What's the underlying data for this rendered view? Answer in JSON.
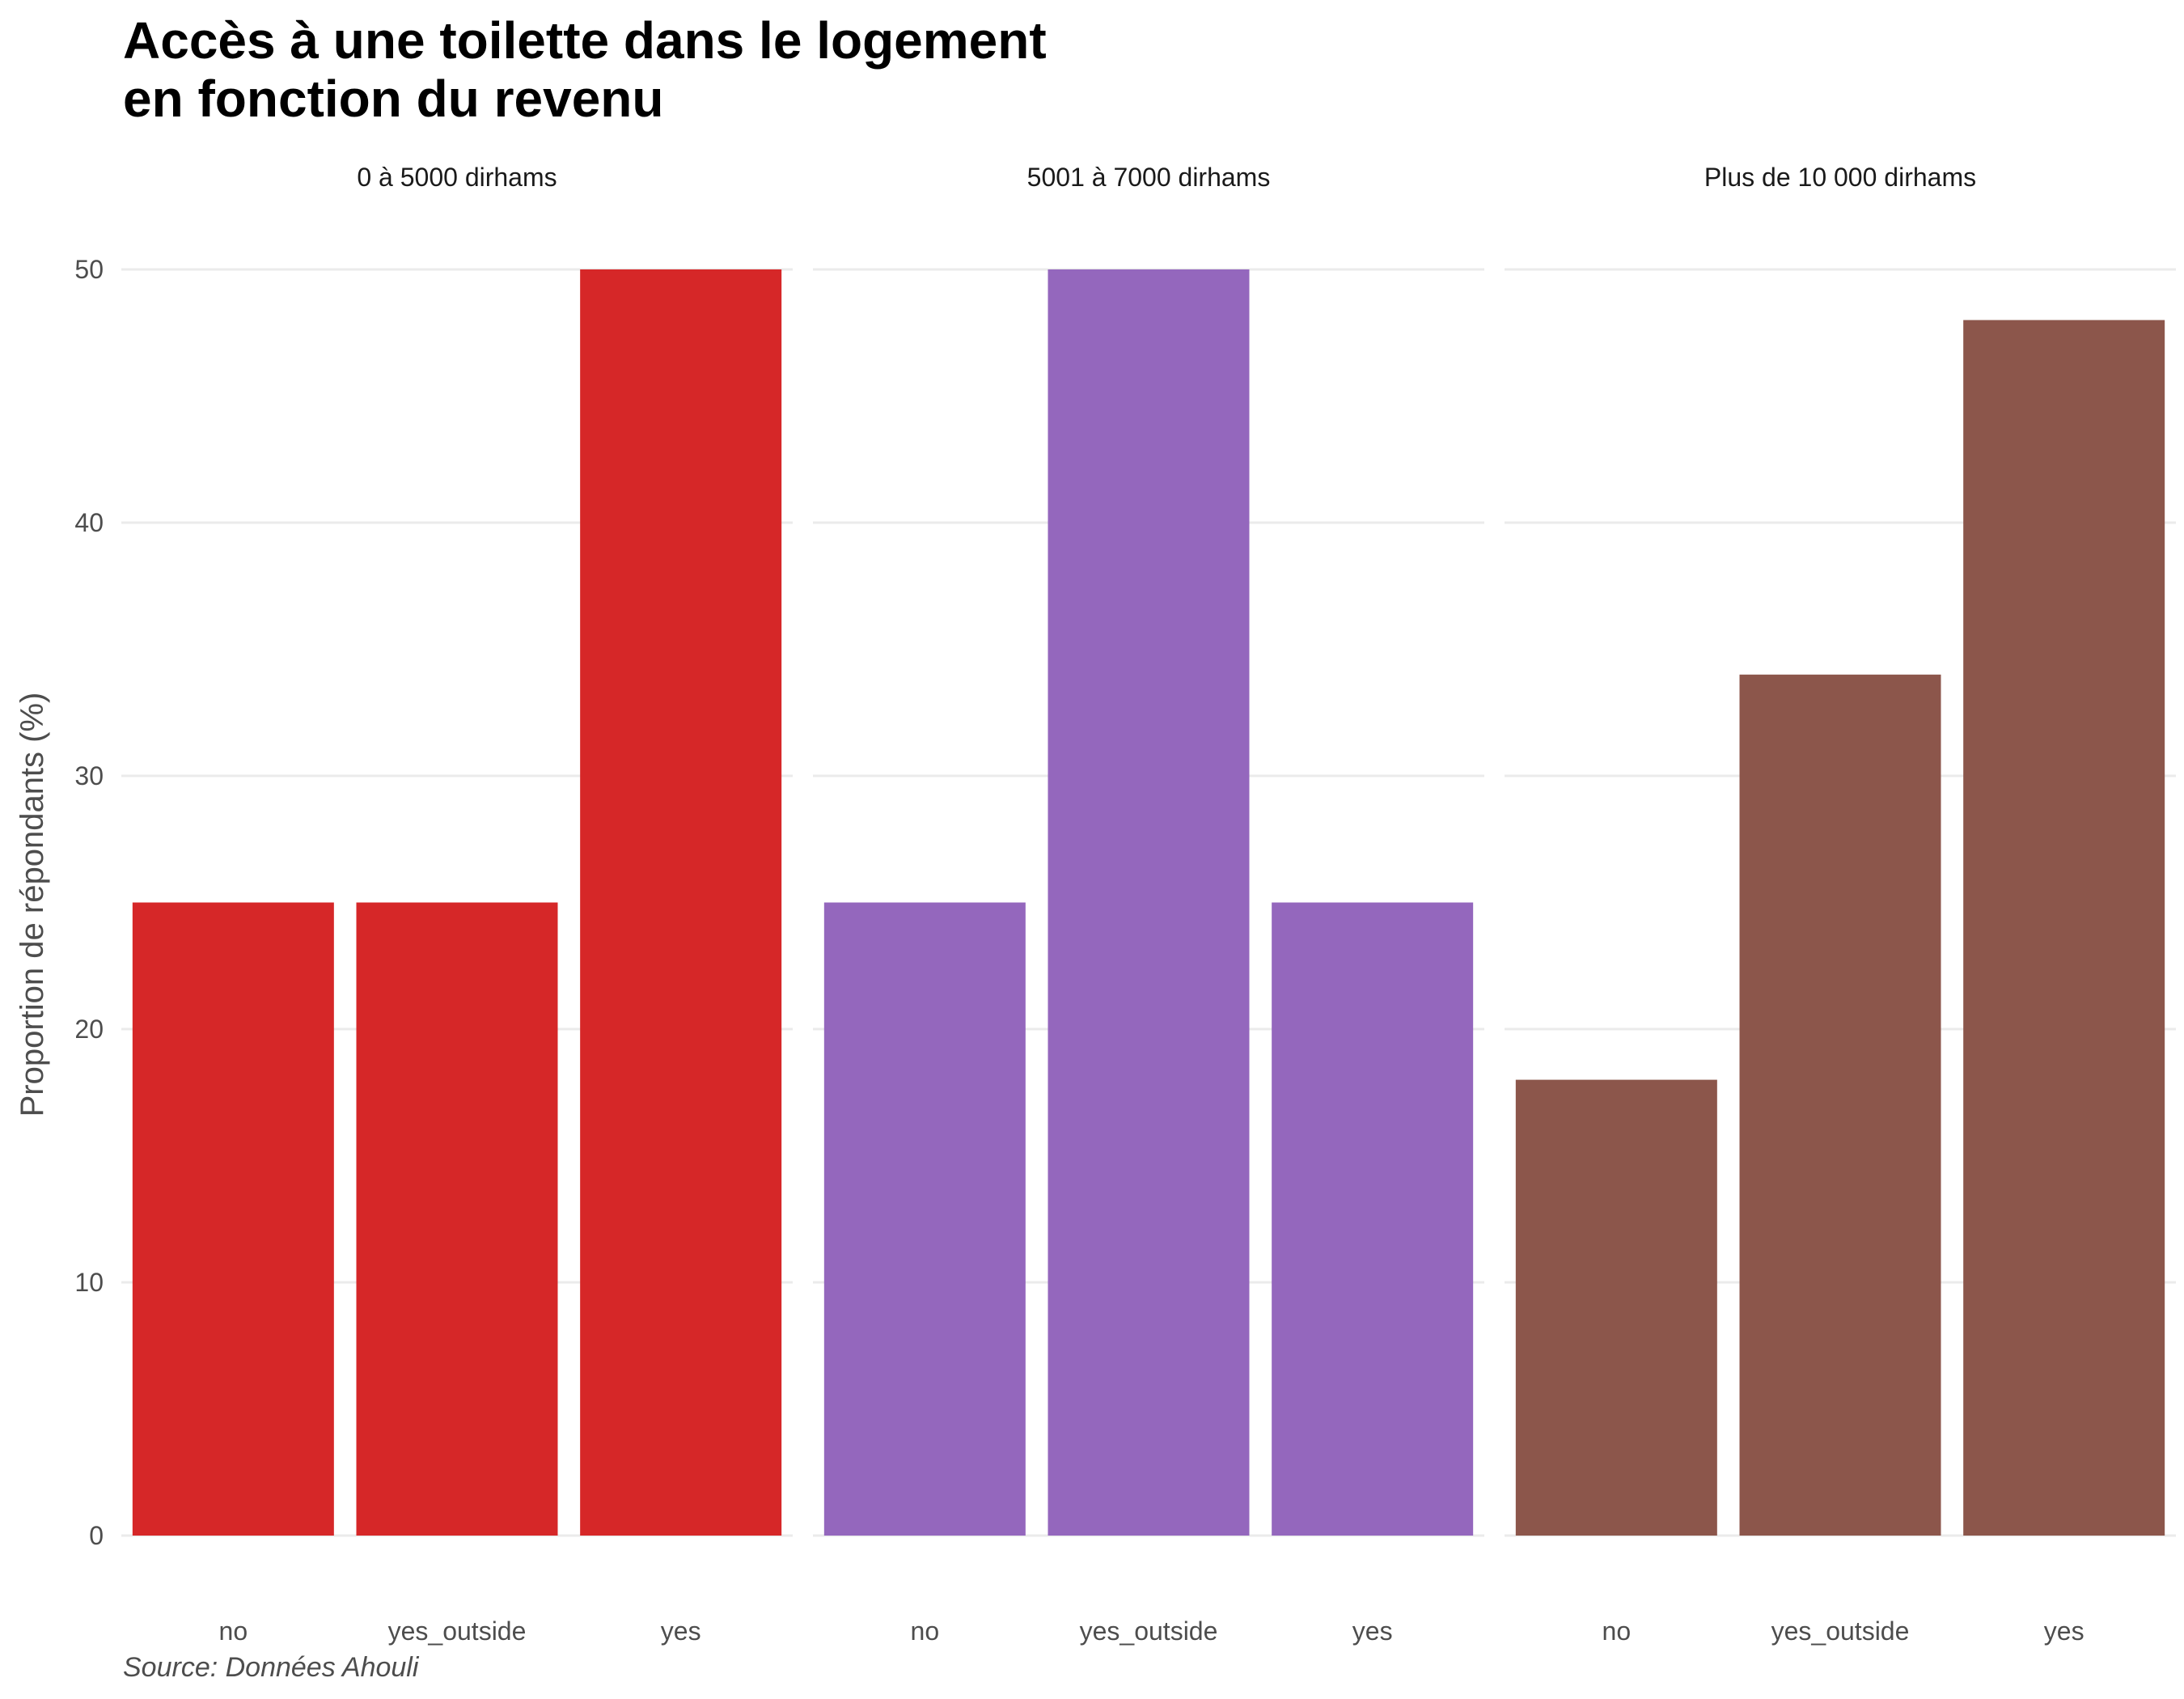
{
  "chart_data": {
    "type": "bar",
    "title_lines": [
      "Accès à une toilette dans le logement",
      "en fonction du revenu"
    ],
    "ylabel": "Proportion de répondants (%)",
    "xlabel": "",
    "caption": "Source: Données Ahouli",
    "ylim": [
      0,
      50
    ],
    "yticks": [
      0,
      10,
      20,
      30,
      40,
      50
    ],
    "categories": [
      "no",
      "yes_outside",
      "yes"
    ],
    "grid": true,
    "legend": "none",
    "panels": [
      {
        "name": "0 à 5000 dirhams",
        "color": "#d62728",
        "values": [
          25,
          25,
          50
        ]
      },
      {
        "name": "5001 à 7000 dirhams",
        "color": "#9467bd",
        "values": [
          25,
          50,
          25
        ]
      },
      {
        "name": "Plus de 10 000 dirhams",
        "color": "#8c564b",
        "values": [
          18,
          34,
          48
        ]
      }
    ]
  }
}
